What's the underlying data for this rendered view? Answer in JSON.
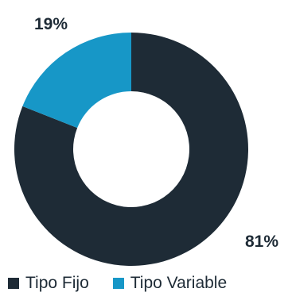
{
  "chart_data": {
    "type": "pie",
    "categories": [
      "Tipo Fijo",
      "Tipo Variable"
    ],
    "values": [
      81,
      19
    ],
    "data_labels": [
      "81%",
      "19%"
    ],
    "colors": [
      "#1e2b36",
      "#1797c7"
    ],
    "donut": true,
    "legend_position": "bottom"
  },
  "legend": {
    "items": [
      {
        "label": "Tipo Fijo",
        "color": "#1e2b36"
      },
      {
        "label": "Tipo Variable",
        "color": "#1797c7"
      }
    ]
  }
}
